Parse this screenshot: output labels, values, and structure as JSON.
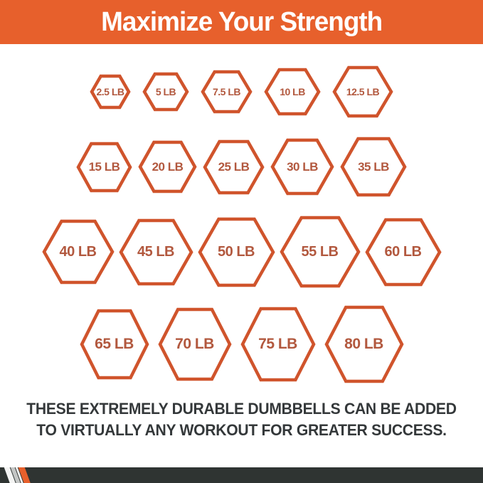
{
  "header": {
    "title": "Maximize Your Strength"
  },
  "colors": {
    "banner_bg": "#E7602C",
    "hexagon_border": "#D0542C",
    "hexagon_label": "#B2583E",
    "caption_text": "#34383A",
    "bottom_bar": "#2F3432",
    "stripe_orange": "#E7602C",
    "stripe_gray": "#C4C6C5",
    "stripe_white": "#F4F4F3"
  },
  "weights": {
    "unit": "LB",
    "rows": [
      [
        "2.5 LB",
        "5 LB",
        "7.5 LB",
        "10 LB",
        "12.5 LB"
      ],
      [
        "15 LB",
        "20 LB",
        "25 LB",
        "30 LB",
        "35 LB"
      ],
      [
        "40 LB",
        "45 LB",
        "50 LB",
        "55 LB",
        "60 LB"
      ],
      [
        "65 LB",
        "70 LB",
        "75 LB",
        "80 LB"
      ]
    ]
  },
  "caption": {
    "line1": "THESE EXTREMELY DURABLE DUMBBELLS CAN BE ADDED",
    "line2": "TO VIRTUALLY ANY WORKOUT FOR GREATER SUCCESS."
  }
}
